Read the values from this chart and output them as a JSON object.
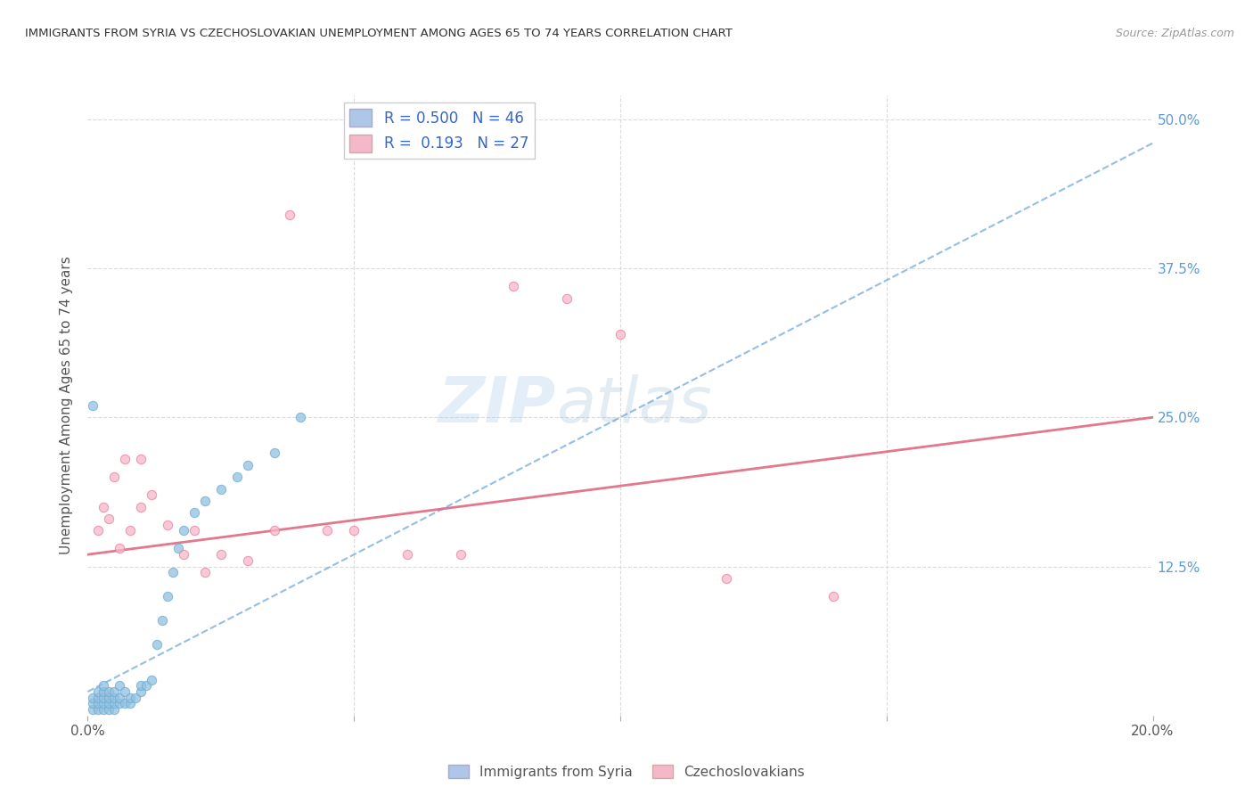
{
  "title": "IMMIGRANTS FROM SYRIA VS CZECHOSLOVAKIAN UNEMPLOYMENT AMONG AGES 65 TO 74 YEARS CORRELATION CHART",
  "source": "Source: ZipAtlas.com",
  "ylabel": "Unemployment Among Ages 65 to 74 years",
  "xlim": [
    0.0,
    0.2
  ],
  "ylim": [
    0.0,
    0.52
  ],
  "xticks": [
    0.0,
    0.05,
    0.1,
    0.15,
    0.2
  ],
  "xtick_labels": [
    "0.0%",
    "",
    "",
    "",
    "20.0%"
  ],
  "yticks_right": [
    0.0,
    0.125,
    0.25,
    0.375,
    0.5
  ],
  "ytick_labels_right": [
    "",
    "12.5%",
    "25.0%",
    "37.5%",
    "50.0%"
  ],
  "syria_scatter_x": [
    0.001,
    0.001,
    0.001,
    0.002,
    0.002,
    0.002,
    0.002,
    0.003,
    0.003,
    0.003,
    0.003,
    0.003,
    0.004,
    0.004,
    0.004,
    0.004,
    0.005,
    0.005,
    0.005,
    0.005,
    0.006,
    0.006,
    0.006,
    0.007,
    0.007,
    0.008,
    0.008,
    0.009,
    0.01,
    0.01,
    0.011,
    0.012,
    0.013,
    0.014,
    0.015,
    0.016,
    0.017,
    0.018,
    0.02,
    0.022,
    0.025,
    0.028,
    0.03,
    0.035,
    0.04,
    0.001
  ],
  "syria_scatter_y": [
    0.005,
    0.01,
    0.015,
    0.005,
    0.01,
    0.015,
    0.02,
    0.005,
    0.01,
    0.015,
    0.02,
    0.025,
    0.005,
    0.01,
    0.015,
    0.02,
    0.005,
    0.01,
    0.015,
    0.02,
    0.01,
    0.015,
    0.025,
    0.01,
    0.02,
    0.01,
    0.015,
    0.015,
    0.02,
    0.025,
    0.025,
    0.03,
    0.06,
    0.08,
    0.1,
    0.12,
    0.14,
    0.155,
    0.17,
    0.18,
    0.19,
    0.2,
    0.21,
    0.22,
    0.25,
    0.26
  ],
  "czech_scatter_x": [
    0.002,
    0.003,
    0.004,
    0.005,
    0.006,
    0.007,
    0.008,
    0.01,
    0.01,
    0.012,
    0.015,
    0.018,
    0.02,
    0.022,
    0.025,
    0.03,
    0.035,
    0.038,
    0.045,
    0.05,
    0.06,
    0.07,
    0.08,
    0.09,
    0.1,
    0.12,
    0.14
  ],
  "czech_scatter_y": [
    0.155,
    0.175,
    0.165,
    0.2,
    0.14,
    0.215,
    0.155,
    0.215,
    0.175,
    0.185,
    0.16,
    0.135,
    0.155,
    0.12,
    0.135,
    0.13,
    0.155,
    0.42,
    0.155,
    0.155,
    0.135,
    0.135,
    0.36,
    0.35,
    0.32,
    0.115,
    0.1
  ],
  "syria_line_x": [
    0.0,
    0.2
  ],
  "syria_line_y": [
    0.02,
    0.48
  ],
  "czech_line_x": [
    0.0,
    0.2
  ],
  "czech_line_y": [
    0.135,
    0.25
  ],
  "watermark_zip": "ZIP",
  "watermark_atlas": "atlas",
  "title_color": "#333333",
  "source_color": "#999999",
  "syria_color": "#92c0e0",
  "syria_edge_color": "#6aaed6",
  "czech_color": "#f7b8cc",
  "czech_edge_color": "#e8809a",
  "syria_line_color": "#5b9bd5",
  "czech_line_color": "#e06880",
  "right_axis_color": "#5b9bd5",
  "grid_color": "#d8d8d8",
  "legend_blue_face": "#aec6e8",
  "legend_pink_face": "#f4b8c8",
  "legend_text_color": "#3366cc"
}
